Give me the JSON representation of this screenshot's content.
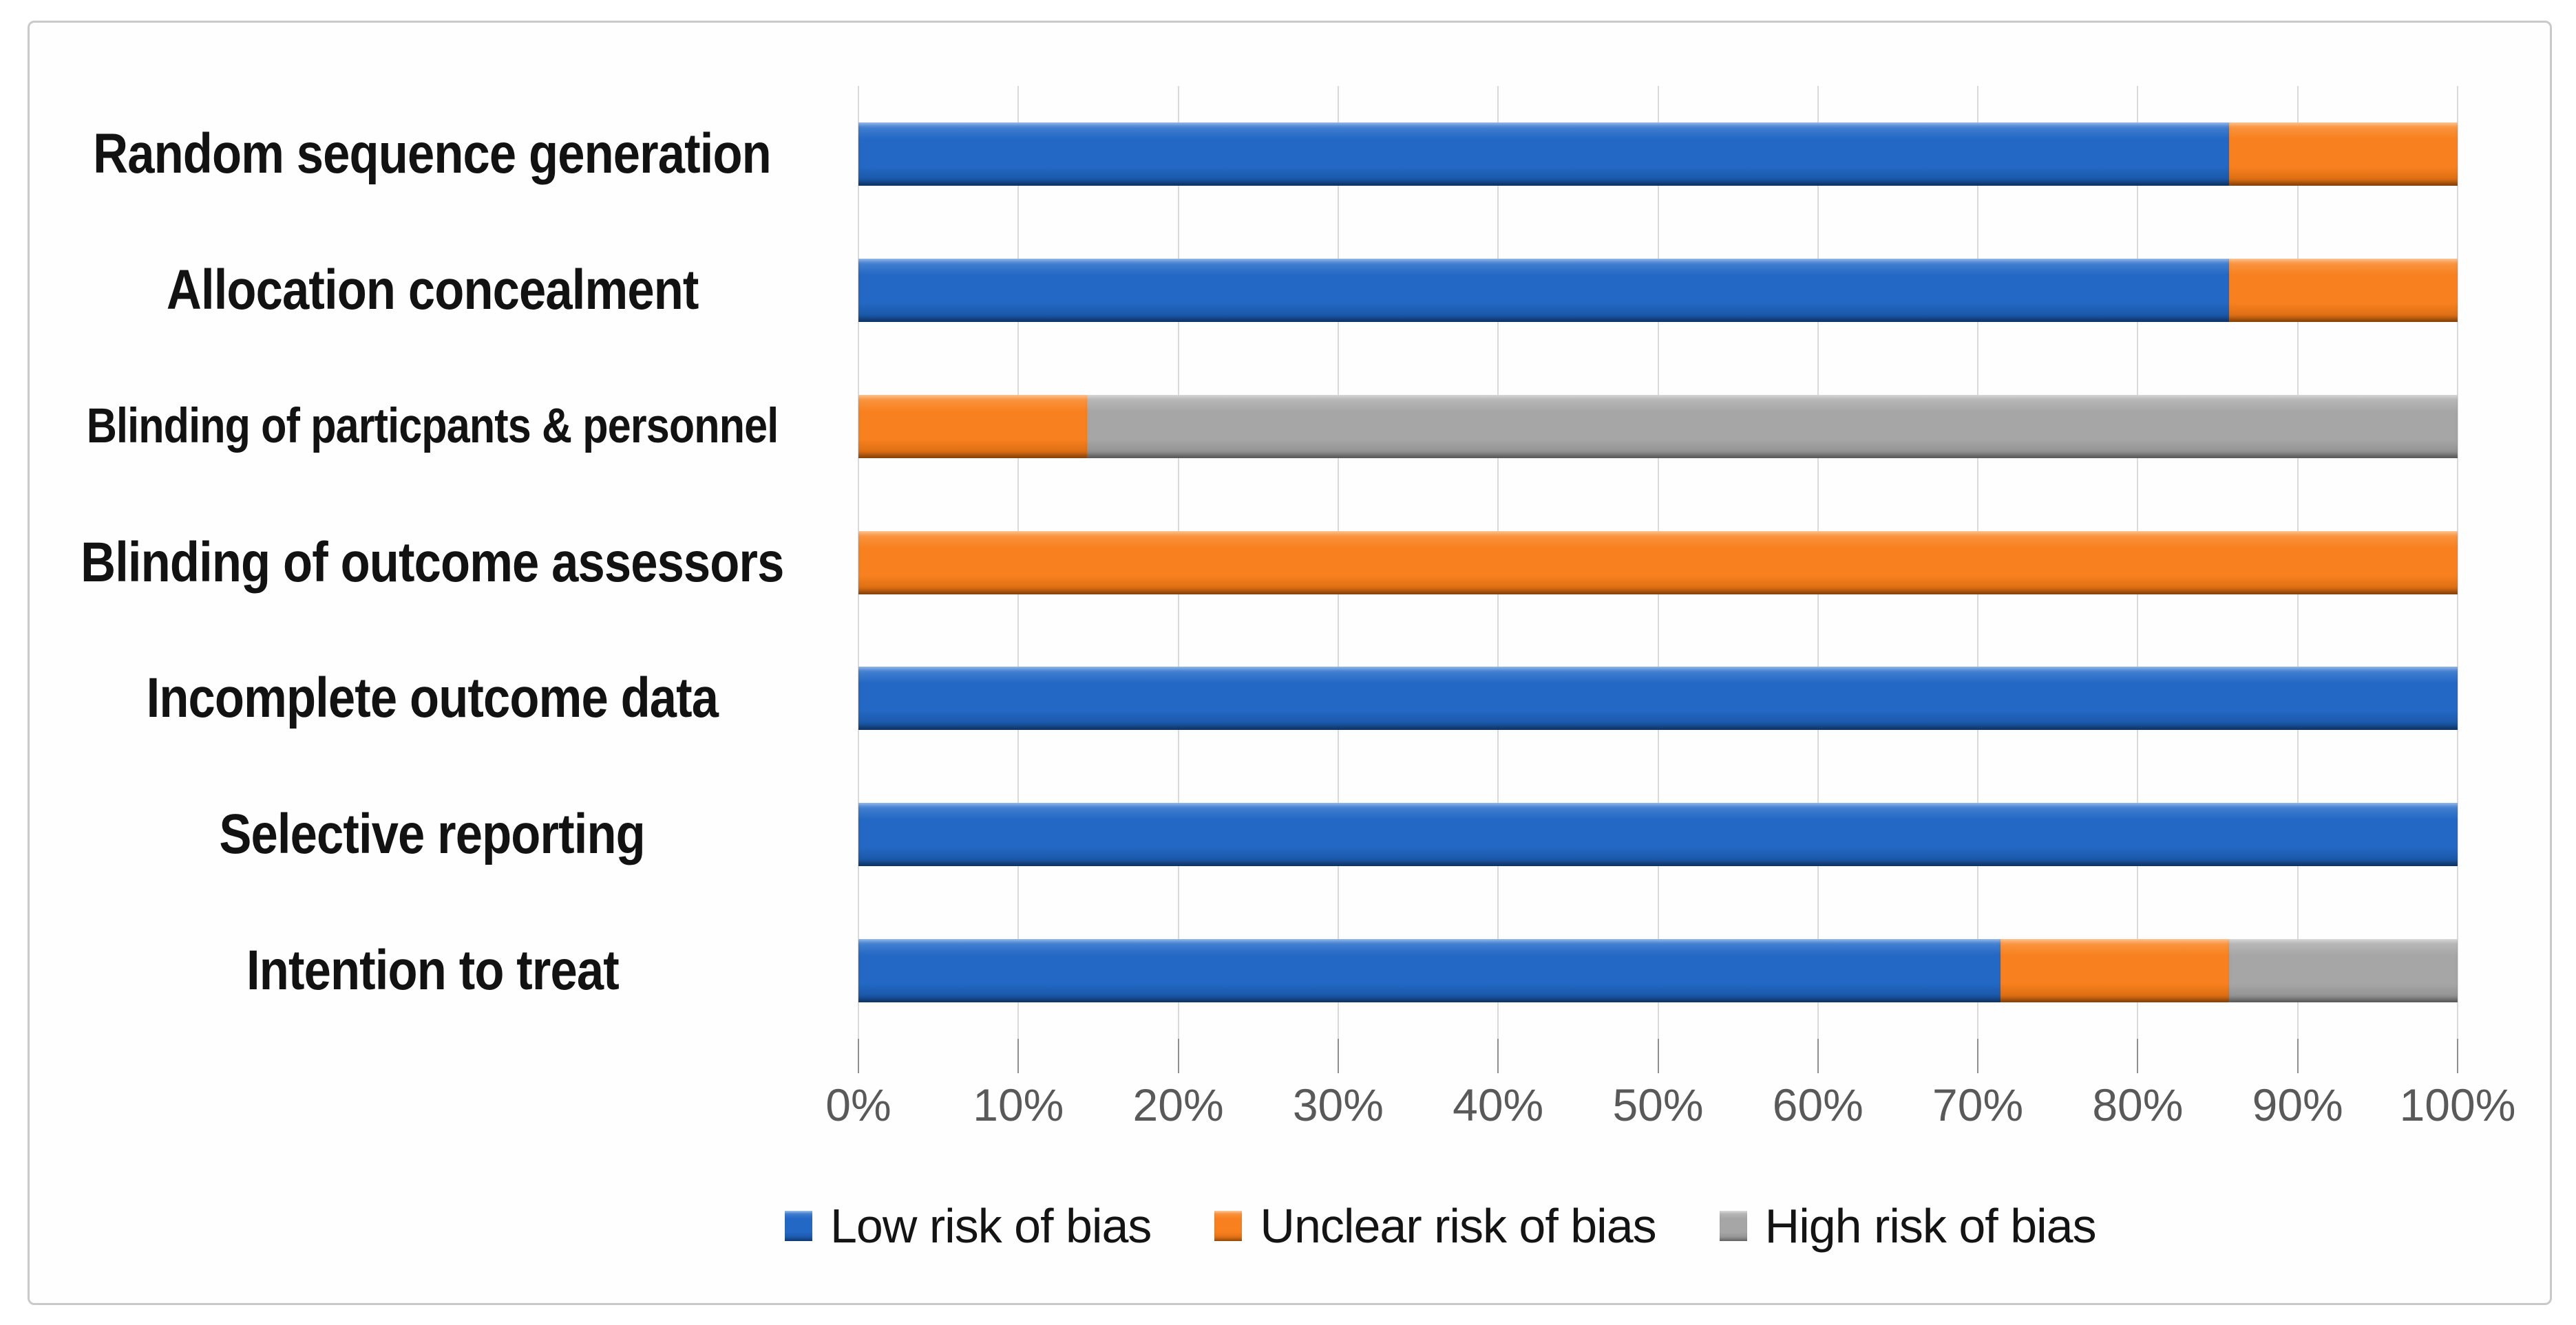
{
  "figure": {
    "background": "#ffffff",
    "frame_border_color": "#c9c9c9",
    "axis_label_color": "#595959",
    "gridline_color": "#dadada",
    "tick_color": "#8f8f8f",
    "category_label_color": "#121212"
  },
  "chart_data": {
    "type": "bar",
    "subtype": "horizontal-stacked-percent",
    "title": "",
    "xlabel": "",
    "ylabel": "",
    "categories": [
      "Random sequence generation",
      "Allocation concealment",
      "Blinding of particpants & personnel",
      "Blinding of outcome assessors",
      "Incomplete outcome data",
      "Selective reporting",
      "Intention to treat"
    ],
    "series": [
      {
        "key": "low",
        "name": "Low risk of bias",
        "color": "#2368c4",
        "color_light": "#4e88d6",
        "color_dark": "#17509c",
        "values": [
          85.7,
          85.7,
          0,
          0,
          100,
          100,
          71.4
        ]
      },
      {
        "key": "unclear",
        "name": "Unclear risk of bias",
        "color": "#f8801f",
        "color_light": "#fa9c4b",
        "color_dark": "#d0660e",
        "values": [
          14.3,
          14.3,
          14.3,
          100,
          0,
          0,
          14.3
        ]
      },
      {
        "key": "high",
        "name": "High risk of bias",
        "color": "#a6a6a6",
        "color_light": "#bdbdbd",
        "color_dark": "#8b8b8b",
        "values": [
          0,
          0,
          85.7,
          0,
          0,
          0,
          14.3
        ]
      }
    ],
    "x_ticks": [
      "0%",
      "10%",
      "20%",
      "30%",
      "40%",
      "50%",
      "60%",
      "70%",
      "80%",
      "90%",
      "100%"
    ],
    "xlim": [
      0,
      100
    ],
    "grid": true,
    "legend_position": "bottom"
  }
}
